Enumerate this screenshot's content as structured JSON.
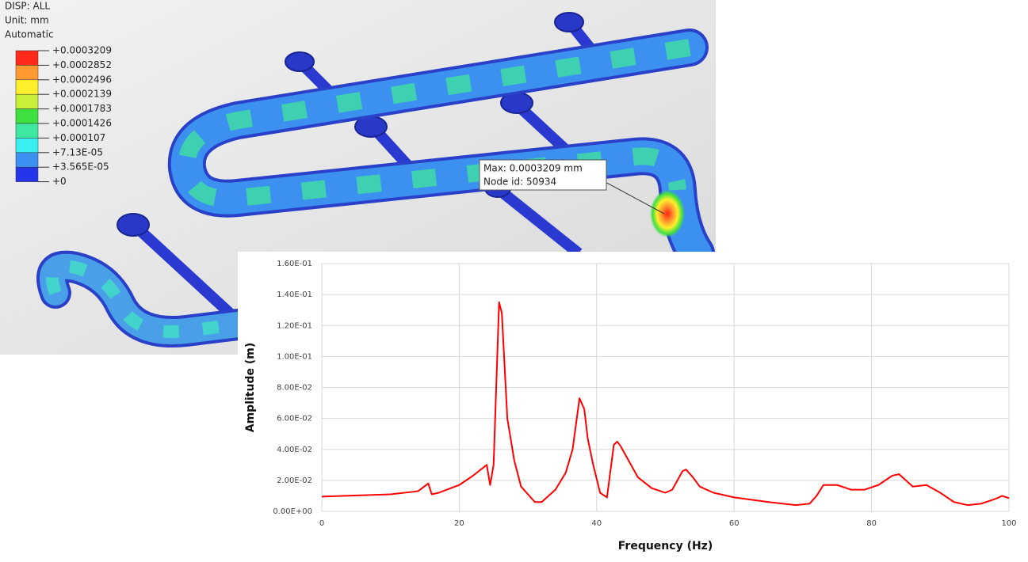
{
  "fea_view": {
    "lines": [
      "DISP: ALL",
      "Unit: mm",
      "Automatic"
    ],
    "legend_labels": [
      "+0.0003209",
      "+0.0002852",
      "+0.0002496",
      "+0.0002139",
      "+0.0001783",
      "+0.0001426",
      "+0.000107",
      "+7.13E-05",
      "+3.565E-05",
      "+0"
    ],
    "legend_colors": [
      "#ff2a1a",
      "#ff9a30",
      "#ffef2a",
      "#c8f03a",
      "#3ee040",
      "#3ee8a0",
      "#38f0f0",
      "#3c90f0",
      "#2434e8"
    ],
    "tooltip": [
      "Max: 0.0003209 mm",
      "Node id: 50934"
    ]
  },
  "chart_data": {
    "type": "line",
    "x_label": "Frequency (Hz)",
    "y_label": "Amplitude (m)",
    "x": [
      0,
      10,
      14,
      15.5,
      16,
      17,
      20,
      22,
      24,
      24.5,
      25,
      25.8,
      26.2,
      27,
      28,
      29,
      31,
      32,
      34,
      35.5,
      36.5,
      37.5,
      38.2,
      38.7,
      39.5,
      40.5,
      41.5,
      42.5,
      43,
      43.5,
      45,
      46,
      48,
      50,
      51,
      52.5,
      53,
      54,
      55,
      57,
      60,
      65,
      69,
      71,
      72,
      73,
      75,
      77,
      79,
      81,
      83,
      84,
      85,
      86,
      88,
      90,
      92,
      94,
      96,
      98,
      99,
      100
    ],
    "series": [
      {
        "color": "#ff0000",
        "values": [
          0.0095,
          0.011,
          0.013,
          0.018,
          0.011,
          0.012,
          0.017,
          0.023,
          0.03,
          0.017,
          0.03,
          0.135,
          0.128,
          0.06,
          0.033,
          0.016,
          0.006,
          0.006,
          0.014,
          0.025,
          0.04,
          0.073,
          0.066,
          0.047,
          0.03,
          0.012,
          0.009,
          0.043,
          0.045,
          0.042,
          0.03,
          0.022,
          0.015,
          0.012,
          0.014,
          0.026,
          0.027,
          0.022,
          0.016,
          0.012,
          0.009,
          0.006,
          0.004,
          0.005,
          0.01,
          0.017,
          0.017,
          0.014,
          0.014,
          0.017,
          0.023,
          0.024,
          0.02,
          0.016,
          0.017,
          0.012,
          0.006,
          0.004,
          0.005,
          0.008,
          0.01,
          0.0085
        ]
      }
    ],
    "xlim": [
      0,
      100
    ],
    "xticks": [
      0,
      20,
      40,
      60,
      80,
      100
    ],
    "ylim": [
      0,
      0.16
    ],
    "yticks": [
      {
        "value": 0,
        "label": "0.00E+00"
      },
      {
        "value": 0.02,
        "label": "2.00E-02"
      },
      {
        "value": 0.04,
        "label": "4.00E-02"
      },
      {
        "value": 0.06,
        "label": "6.00E-02"
      },
      {
        "value": 0.08,
        "label": "8.00E-02"
      },
      {
        "value": 0.1,
        "label": "1.00E-01"
      },
      {
        "value": 0.12,
        "label": "1.20E-01"
      },
      {
        "value": 0.14,
        "label": "1.40E-01"
      },
      {
        "value": 0.16,
        "label": "1.60E-01"
      }
    ],
    "grid": true
  }
}
